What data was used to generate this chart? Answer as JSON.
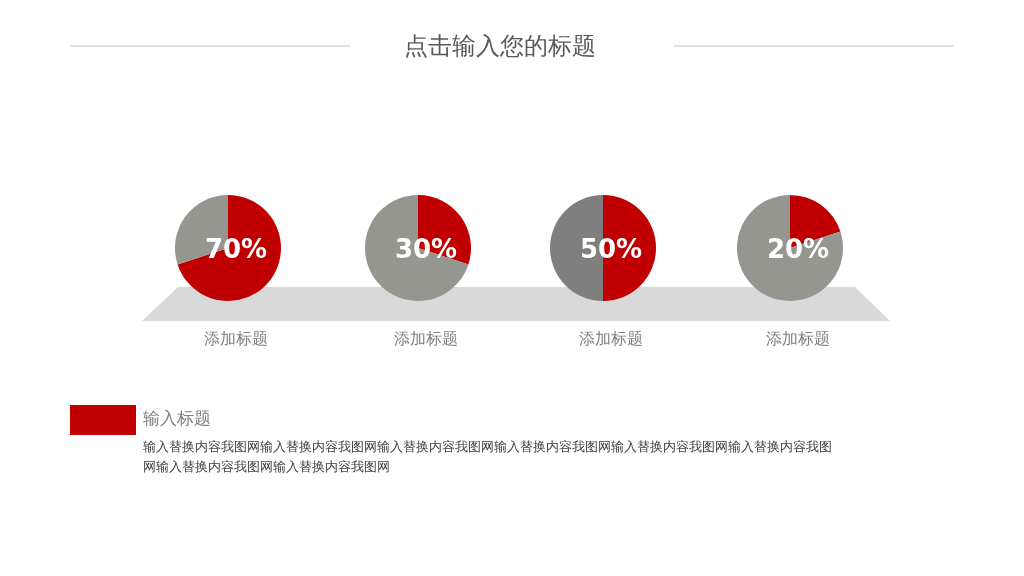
{
  "chart_data": [
    {
      "type": "other",
      "title": "点击输入您的标题"
    },
    {
      "type": "pie",
      "title": "添加标题",
      "categories": [
        null,
        null
      ],
      "values": [
        70,
        30
      ],
      "colors": [
        "#c00000",
        "#95968f"
      ],
      "annotations": [
        "70%"
      ]
    },
    {
      "type": "pie",
      "title": "添加标题",
      "categories": [
        null,
        null
      ],
      "values": [
        30,
        70
      ],
      "colors": [
        "#c00000",
        "#95968f"
      ],
      "annotations": [
        "30%"
      ]
    },
    {
      "type": "pie",
      "title": "添加标题",
      "categories": [
        null,
        null
      ],
      "values": [
        50,
        50
      ],
      "colors": [
        "#c00000",
        "#7f7f7f"
      ],
      "annotations": [
        "50%"
      ]
    },
    {
      "type": "pie",
      "title": "添加标题",
      "categories": [
        null,
        null
      ],
      "values": [
        20,
        80
      ],
      "colors": [
        "#c00000",
        "#95968f"
      ],
      "annotations": [
        "20%"
      ]
    },
    {
      "type": "other",
      "title": "输入标题",
      "annotations": [
        "输入替换内容我图网输入替换内容我图网输入替换内容我图网输入替换内容我图网输入替换内容我图网输入替换内容我图网输入替换内容我图网输入替换内容我图网"
      ]
    }
  ]
}
